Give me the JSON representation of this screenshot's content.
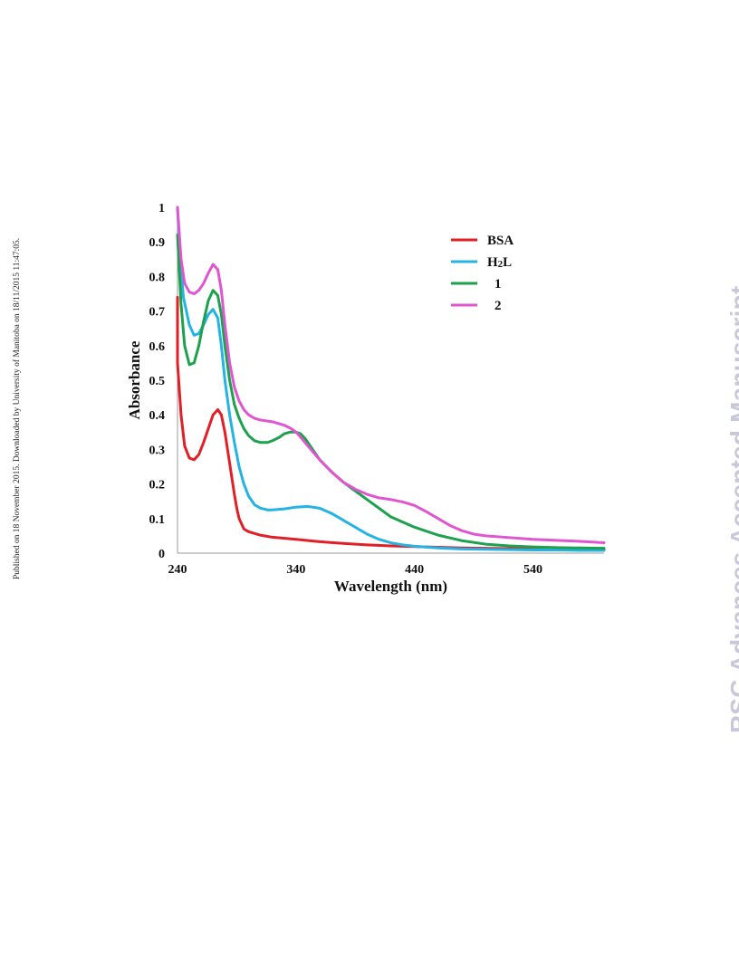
{
  "side_note": "Published on 18 November 2015. Downloaded by University of Manitoba on 18/11/2015 11:47:05.",
  "watermark": "RSC Advances Accepted Manuscript",
  "chart_data": {
    "type": "line",
    "xlabel": "Wavelength (nm)",
    "ylabel": "Absorbance",
    "xlim": [
      240,
      600
    ],
    "ylim": [
      0,
      1
    ],
    "xticks": [
      "240",
      "340",
      "440",
      "540"
    ],
    "xtick_values": [
      240,
      340,
      440,
      540
    ],
    "yticks": [
      "0",
      "0.1",
      "0.2",
      "0.3",
      "0.4",
      "0.5",
      "0.6",
      "0.7",
      "0.8",
      "0.9",
      "1"
    ],
    "ytick_values": [
      0,
      0.1,
      0.2,
      0.3,
      0.4,
      0.5,
      0.6,
      0.7,
      0.8,
      0.9,
      1
    ],
    "legend_position": "top-right",
    "series": [
      {
        "name": "BSA",
        "color": "#e21f26",
        "x": [
          238,
          240,
          243,
          246,
          250,
          254,
          258,
          262,
          266,
          270,
          274,
          277,
          280,
          284,
          288,
          290,
          292,
          296,
          300,
          310,
          320,
          340,
          360,
          380,
          400,
          420,
          440,
          460,
          480,
          500,
          520,
          540,
          560,
          580,
          600
        ],
        "y": [
          0.74,
          0.55,
          0.4,
          0.31,
          0.275,
          0.27,
          0.285,
          0.32,
          0.36,
          0.4,
          0.415,
          0.4,
          0.35,
          0.26,
          0.17,
          0.13,
          0.1,
          0.07,
          0.062,
          0.052,
          0.046,
          0.04,
          0.033,
          0.028,
          0.024,
          0.021,
          0.019,
          0.017,
          0.015,
          0.014,
          0.013,
          0.013,
          0.012,
          0.012,
          0.011
        ]
      },
      {
        "name": "H2L",
        "color": "#25b3e4",
        "x": [
          240,
          242,
          245,
          250,
          254,
          258,
          262,
          266,
          270,
          274,
          277,
          280,
          284,
          288,
          292,
          296,
          300,
          305,
          310,
          316,
          320,
          330,
          340,
          350,
          360,
          370,
          380,
          390,
          400,
          410,
          420,
          430,
          440,
          460,
          480,
          500,
          520,
          540,
          560,
          580,
          600
        ],
        "y": [
          1.0,
          0.86,
          0.74,
          0.66,
          0.63,
          0.635,
          0.66,
          0.69,
          0.705,
          0.68,
          0.6,
          0.5,
          0.4,
          0.32,
          0.25,
          0.2,
          0.165,
          0.14,
          0.13,
          0.125,
          0.125,
          0.128,
          0.133,
          0.135,
          0.13,
          0.115,
          0.095,
          0.075,
          0.055,
          0.04,
          0.03,
          0.024,
          0.02,
          0.015,
          0.012,
          0.011,
          0.01,
          0.009,
          0.009,
          0.008,
          0.008
        ]
      },
      {
        "name": "1",
        "color": "#1da14c",
        "x": [
          240,
          243,
          246,
          250,
          254,
          258,
          262,
          266,
          270,
          274,
          277,
          280,
          284,
          288,
          292,
          296,
          300,
          305,
          310,
          316,
          320,
          326,
          330,
          335,
          340,
          344,
          348,
          352,
          356,
          360,
          370,
          380,
          390,
          400,
          410,
          420,
          440,
          460,
          480,
          500,
          520,
          540,
          560,
          580,
          600
        ],
        "y": [
          0.92,
          0.72,
          0.6,
          0.545,
          0.55,
          0.6,
          0.67,
          0.73,
          0.76,
          0.745,
          0.69,
          0.6,
          0.5,
          0.43,
          0.39,
          0.36,
          0.34,
          0.325,
          0.32,
          0.32,
          0.325,
          0.335,
          0.345,
          0.35,
          0.35,
          0.345,
          0.33,
          0.31,
          0.29,
          0.27,
          0.235,
          0.205,
          0.18,
          0.155,
          0.13,
          0.105,
          0.075,
          0.052,
          0.036,
          0.026,
          0.021,
          0.018,
          0.016,
          0.015,
          0.014
        ]
      },
      {
        "name": "2",
        "color": "#e055d0",
        "x": [
          240,
          243,
          246,
          250,
          254,
          258,
          262,
          266,
          270,
          274,
          277,
          280,
          284,
          288,
          292,
          296,
          300,
          305,
          310,
          320,
          330,
          336,
          340,
          344,
          350,
          360,
          370,
          380,
          390,
          400,
          410,
          420,
          430,
          440,
          450,
          460,
          470,
          480,
          490,
          500,
          520,
          540,
          560,
          580,
          600
        ],
        "y": [
          1.0,
          0.85,
          0.78,
          0.755,
          0.75,
          0.76,
          0.78,
          0.81,
          0.835,
          0.82,
          0.76,
          0.66,
          0.55,
          0.48,
          0.44,
          0.415,
          0.4,
          0.39,
          0.385,
          0.38,
          0.37,
          0.36,
          0.35,
          0.335,
          0.31,
          0.27,
          0.235,
          0.205,
          0.185,
          0.17,
          0.16,
          0.155,
          0.148,
          0.138,
          0.12,
          0.1,
          0.08,
          0.065,
          0.055,
          0.05,
          0.045,
          0.04,
          0.037,
          0.034,
          0.03
        ]
      }
    ]
  }
}
